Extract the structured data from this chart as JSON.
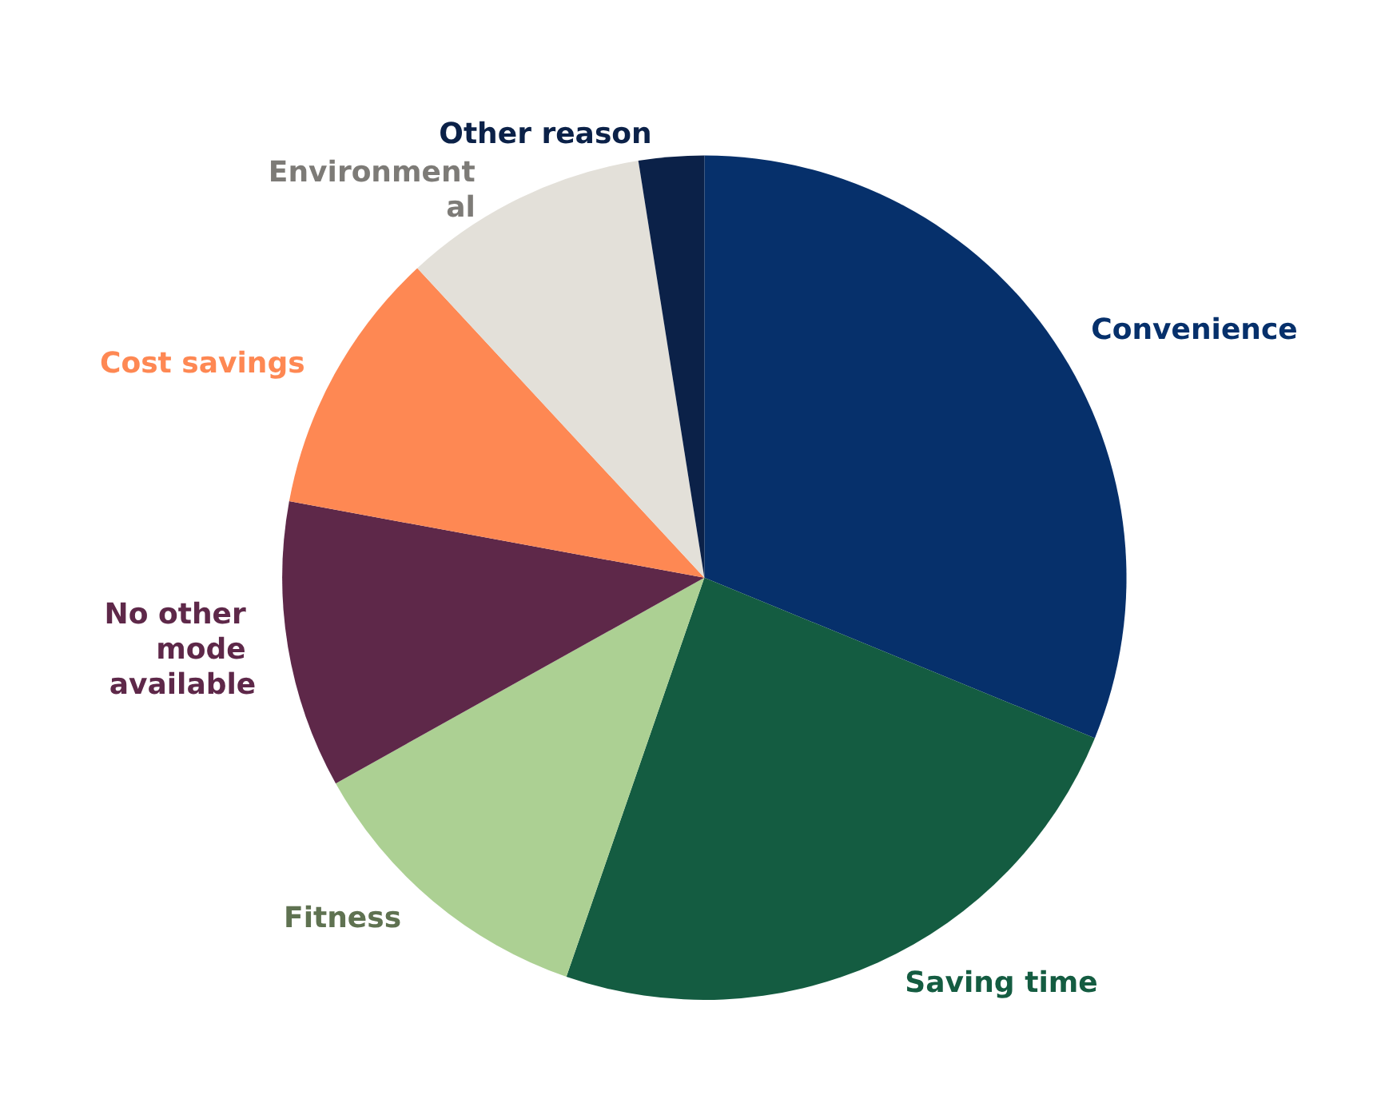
{
  "chart_data": {
    "type": "pie",
    "categories": [
      "Convenience",
      "Saving time",
      "Fitness",
      "No other mode available",
      "Cost savings",
      "Environmental",
      "Other reason"
    ],
    "values": [
      31.2,
      24.1,
      11.6,
      11.0,
      10.2,
      9.4,
      2.5
    ],
    "colors": [
      "#06306b",
      "#145c41",
      "#acd093",
      "#5e2849",
      "#fe8853",
      "#e3e0d9",
      "#0b2148"
    ],
    "legend": false
  }
}
